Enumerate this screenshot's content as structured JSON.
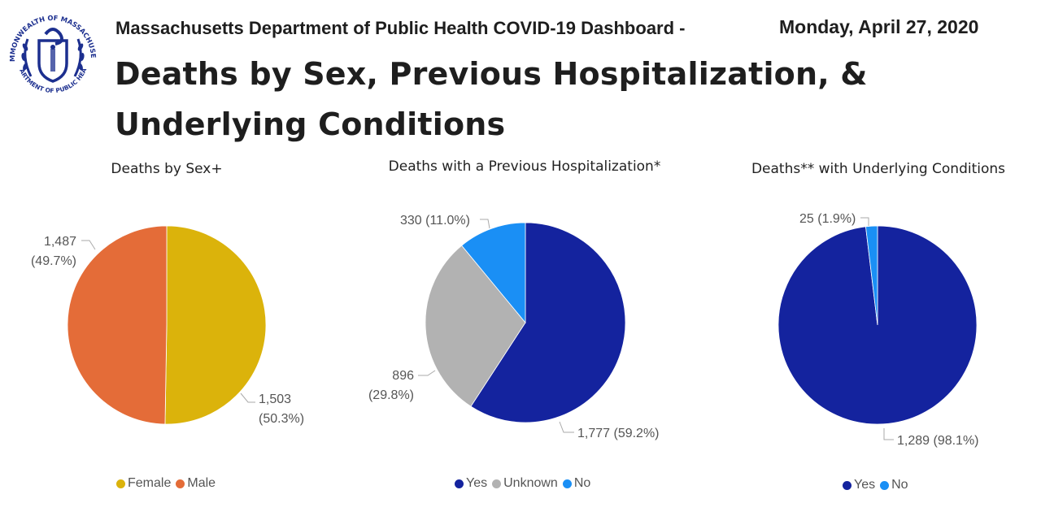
{
  "header": {
    "subtitle": "Massachusetts Department of Public Health COVID-19 Dashboard -",
    "date": "Monday, April 27, 2020",
    "title": "Deaths by Sex, Previous Hospitalization, & Underlying Conditions"
  },
  "logo": {
    "text_top": "COMMONWEALTH OF MASSACHUSETTS",
    "text_bottom": "DEPARTMENT OF PUBLIC HEALTH",
    "color": "#1c2f8f"
  },
  "chart_data": [
    {
      "type": "pie",
      "title": "Deaths by Sex+",
      "categories": [
        "Female",
        "Male"
      ],
      "values": [
        1503,
        1487
      ],
      "percents": [
        "50.3%",
        "49.7%"
      ],
      "labels": [
        [
          "1,503",
          "(50.3%)"
        ],
        [
          "1,487",
          "(49.7%)"
        ]
      ],
      "colors": [
        "#dbb30b",
        "#e46c38"
      ],
      "legend": [
        "Female",
        "Male"
      ],
      "legend_position": "bottom"
    },
    {
      "type": "pie",
      "title": "Deaths with a Previous Hospitalization*",
      "categories": [
        "Yes",
        "Unknown",
        "No"
      ],
      "values": [
        1777,
        896,
        330
      ],
      "percents": [
        "59.2%",
        "29.8%",
        "11.0%"
      ],
      "labels": [
        [
          "1,777 (59.2%)"
        ],
        [
          "896",
          "(29.8%)"
        ],
        [
          "330 (11.0%)"
        ]
      ],
      "colors": [
        "#14239e",
        "#b2b2b2",
        "#1a8ff5"
      ],
      "legend": [
        "Yes",
        "Unknown",
        "No"
      ],
      "legend_position": "bottom"
    },
    {
      "type": "pie",
      "title": "Deaths** with Underlying Conditions",
      "categories": [
        "Yes",
        "No"
      ],
      "values": [
        1289,
        25
      ],
      "percents": [
        "98.1%",
        "1.9%"
      ],
      "labels": [
        [
          "1,289 (98.1%)"
        ],
        [
          "25 (1.9%)"
        ]
      ],
      "colors": [
        "#14239e",
        "#1a8ff5"
      ],
      "legend": [
        "Yes",
        "No"
      ],
      "legend_position": "bottom"
    }
  ]
}
